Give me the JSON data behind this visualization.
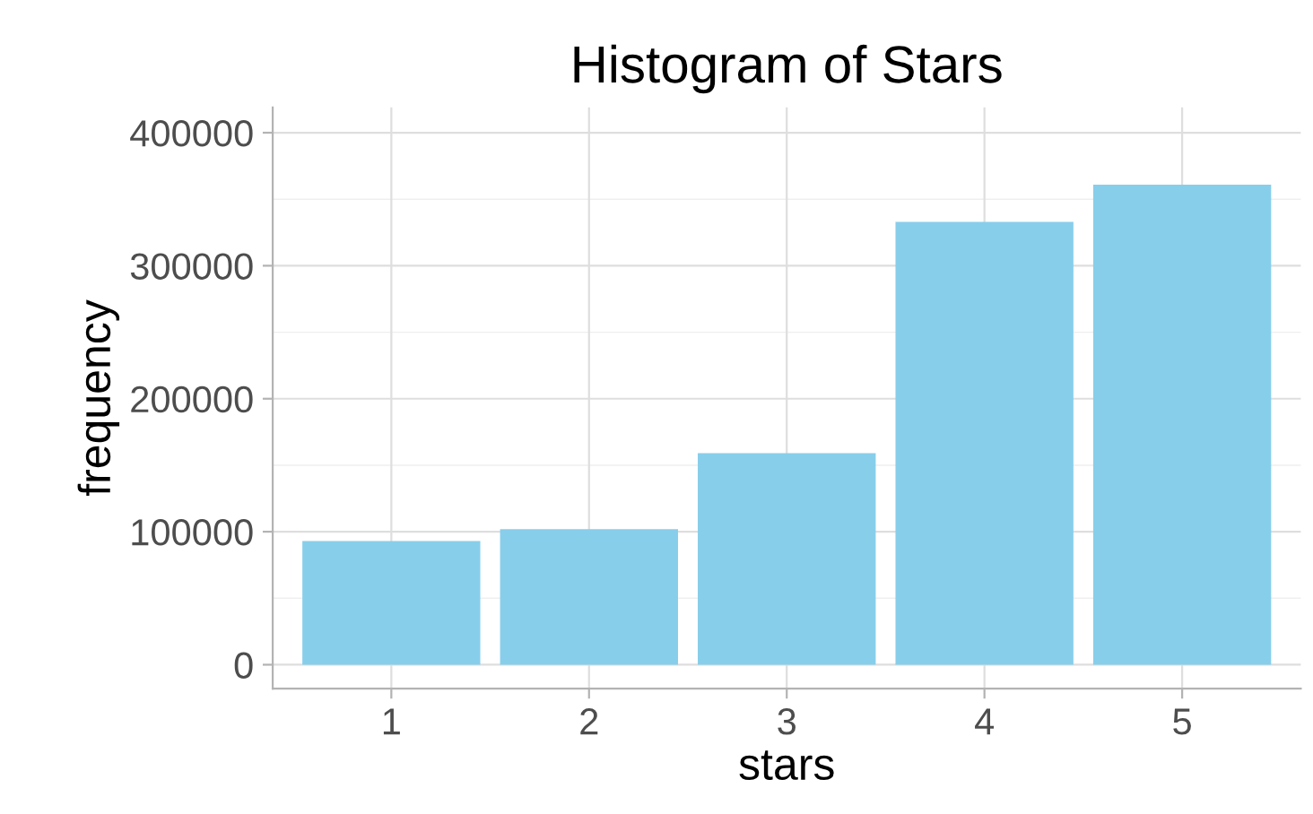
{
  "chart_data": {
    "type": "bar",
    "title": "Histogram of Stars",
    "xlabel": "stars",
    "ylabel": "frequency",
    "categories": [
      "1",
      "2",
      "3",
      "4",
      "5"
    ],
    "values": [
      93000,
      102000,
      159000,
      333000,
      361000
    ],
    "color": "#87ceeb",
    "ylim": [
      -18000,
      419000
    ],
    "yticks": [
      0,
      100000,
      200000,
      300000,
      400000
    ],
    "grid": true
  }
}
